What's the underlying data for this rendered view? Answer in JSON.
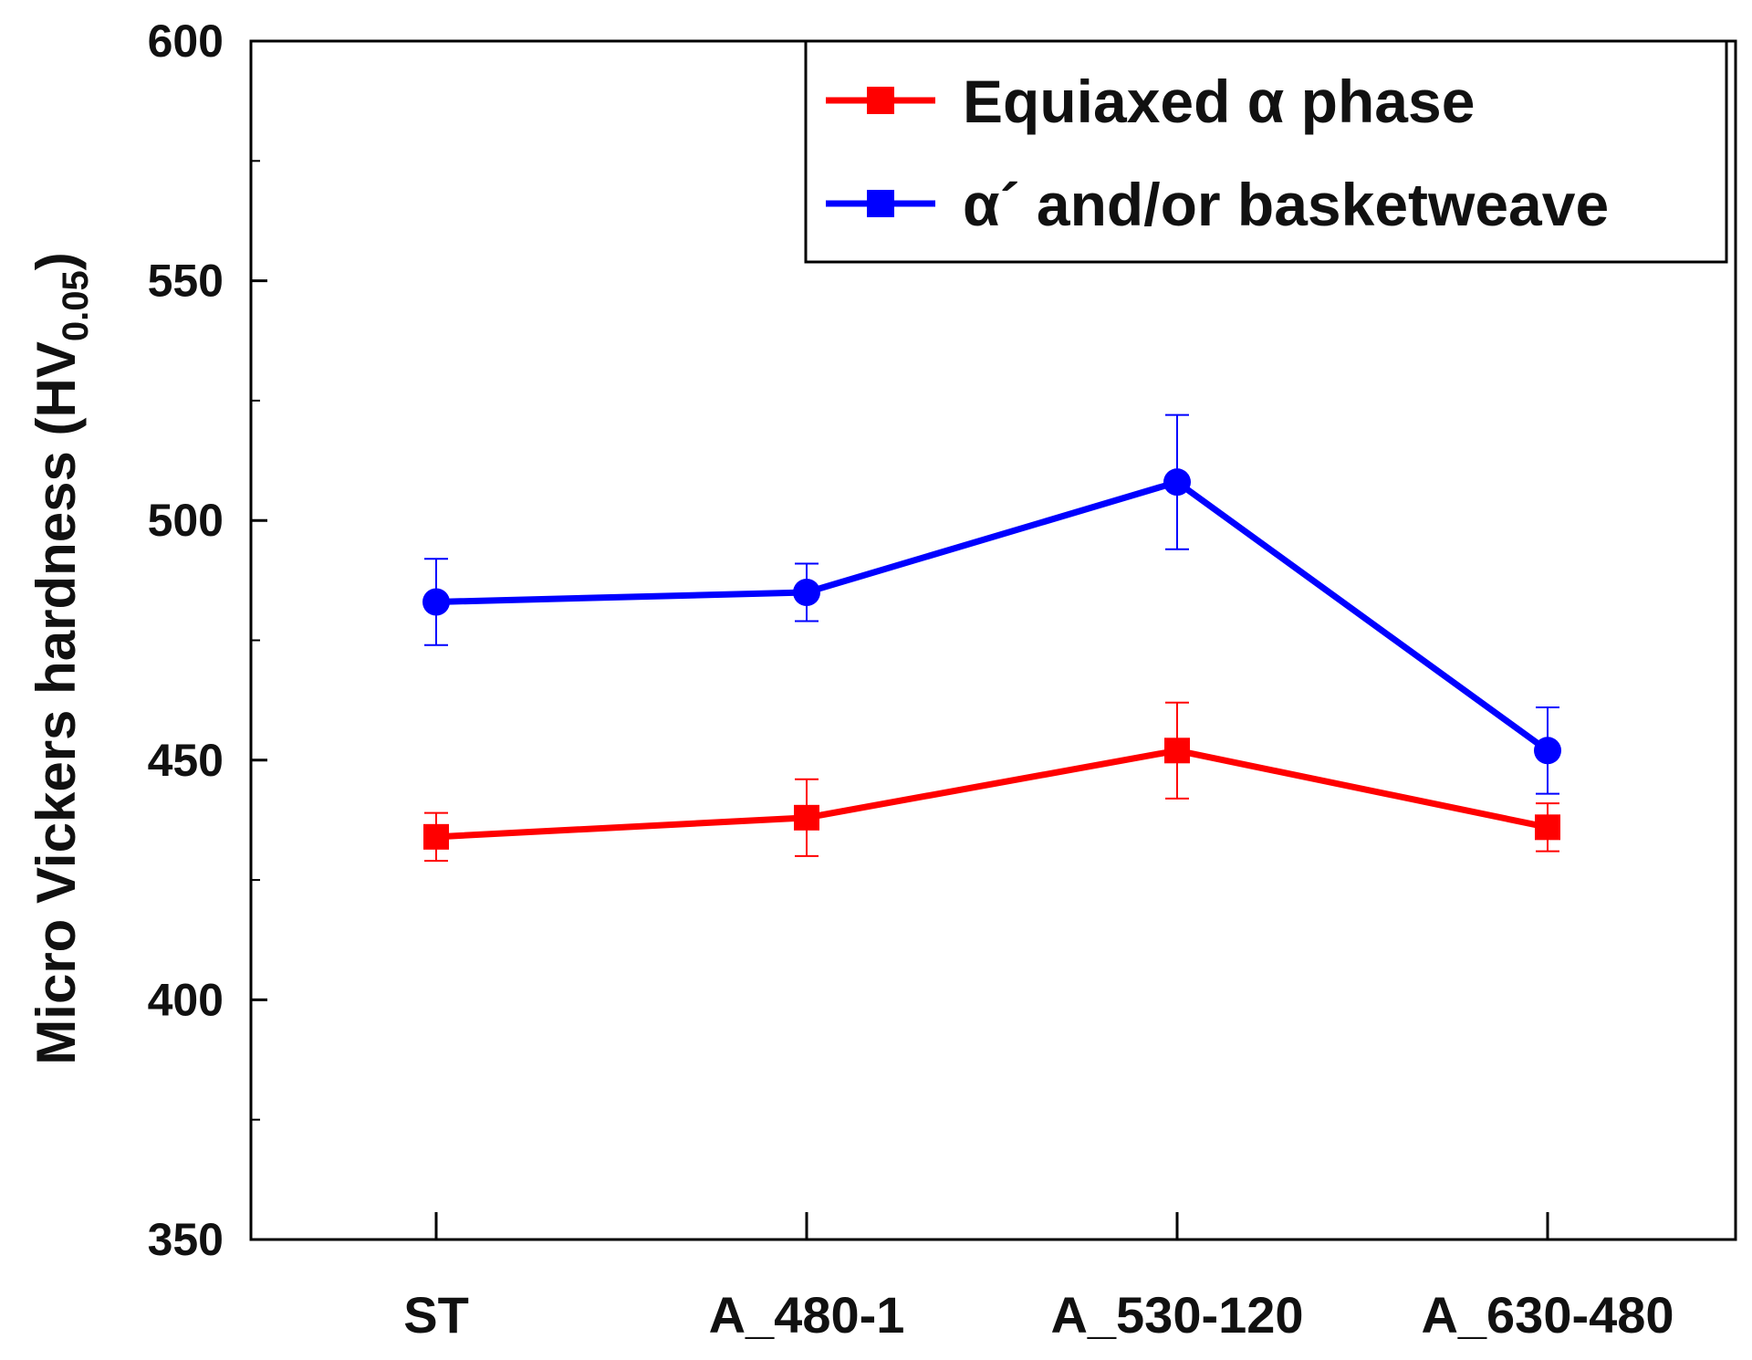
{
  "chart_data": {
    "type": "line",
    "title": "",
    "xlabel": "",
    "ylabel": "Micro Vickers hardness (HV",
    "ylabel_subscript": "0.05",
    "ylabel_close": ")",
    "ylim": [
      350,
      600
    ],
    "yticks": [
      350,
      400,
      450,
      500,
      550,
      600
    ],
    "yticks_label": [
      "350",
      "400",
      "450",
      "500",
      "550",
      "600"
    ],
    "categories": [
      "ST",
      "A_480-1",
      "A_530-120",
      "A_630-480"
    ],
    "legend_position": "top-right",
    "series": [
      {
        "name": "Equiaxed α phase",
        "color": "#ff0000",
        "marker": "square",
        "values": [
          434,
          438,
          452,
          436
        ],
        "errors": [
          5,
          8,
          10,
          5
        ]
      },
      {
        "name": "α´ and/or basketweave",
        "color": "#0000ff",
        "marker": "circle",
        "values": [
          483,
          485,
          508,
          452
        ],
        "errors": [
          9,
          6,
          14,
          9
        ]
      }
    ]
  }
}
